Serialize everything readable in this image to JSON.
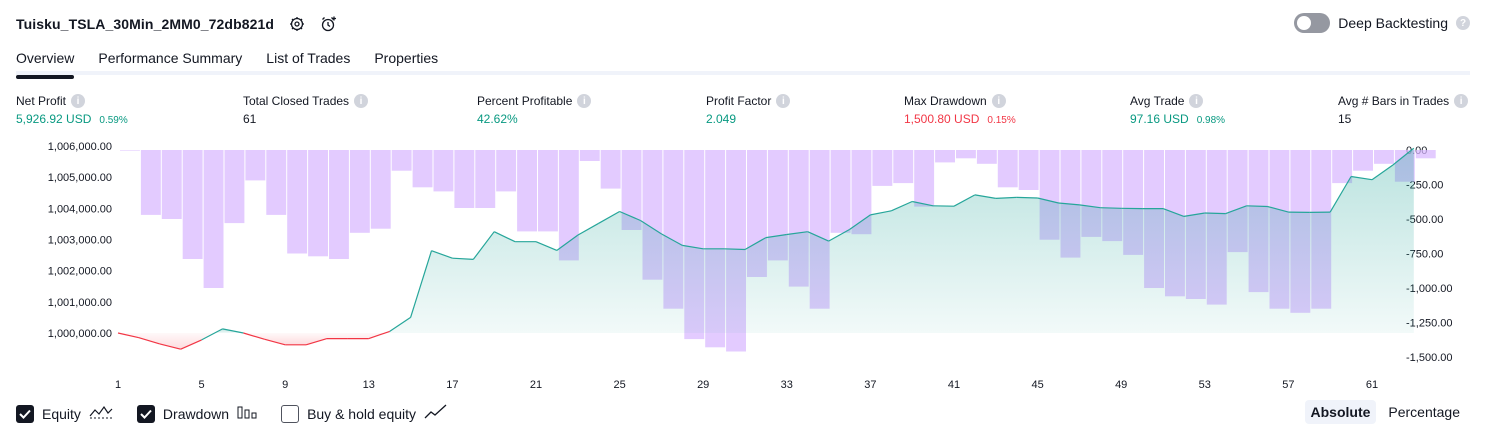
{
  "header": {
    "strategy_title": "Tuisku_TSLA_30Min_2MM0_72db821d"
  },
  "deep_backtesting": {
    "label": "Deep Backtesting",
    "enabled": false
  },
  "tabs": [
    {
      "label": "Overview",
      "active": true
    },
    {
      "label": "Performance Summary",
      "active": false
    },
    {
      "label": "List of Trades",
      "active": false
    },
    {
      "label": "Properties",
      "active": false
    }
  ],
  "metrics": {
    "net_profit": {
      "label": "Net Profit",
      "value": "5,926.92 USD",
      "pct": "0.59%"
    },
    "total_closed_trades": {
      "label": "Total Closed Trades",
      "value": "61"
    },
    "percent_profitable": {
      "label": "Percent Profitable",
      "value": "42.62%"
    },
    "profit_factor": {
      "label": "Profit Factor",
      "value": "2.049"
    },
    "max_drawdown": {
      "label": "Max Drawdown",
      "value": "1,500.80 USD",
      "pct": "0.15%"
    },
    "avg_trade": {
      "label": "Avg Trade",
      "value": "97.16 USD",
      "pct": "0.98%"
    },
    "avg_bars": {
      "label": "Avg # Bars in Trades",
      "value": "15"
    }
  },
  "legend": {
    "equity": {
      "label": "Equity",
      "checked": true
    },
    "drawdown": {
      "label": "Drawdown",
      "checked": true
    },
    "buy_hold": {
      "label": "Buy & hold equity",
      "checked": false
    }
  },
  "modes": {
    "absolute": "Absolute",
    "percentage": "Percentage",
    "active": "absolute"
  },
  "colors": {
    "equity_up": "#26a69a",
    "equity_down": "#f23645",
    "drawdown_bar": "#d8b7ff",
    "positive_text": "#089981",
    "negative_text": "#f23645"
  },
  "chart_data": {
    "type": "area",
    "x_ticks": [
      "1",
      "5",
      "9",
      "13",
      "17",
      "21",
      "25",
      "29",
      "33",
      "37",
      "41",
      "45",
      "49",
      "53",
      "57",
      "61"
    ],
    "left_ticks": [
      "1,006,000.00",
      "1,005,000.00",
      "1,004,000.00",
      "1,003,000.00",
      "1,002,000.00",
      "1,001,000.00",
      "1,000,000.00"
    ],
    "right_ticks": [
      "0.00",
      "-250.00",
      "-500.00",
      "-750.00",
      "-1,000.00",
      "-1,250.00",
      "-1,500.00"
    ],
    "equity_ylim": [
      999500,
      1006000
    ],
    "drawdown_ylim": [
      -1500,
      0
    ],
    "baseline": 1000000,
    "series": [
      {
        "name": "Equity",
        "values": [
          1000000,
          999850,
          999650,
          999480,
          999780,
          1000130,
          1000000,
          999800,
          999620,
          999620,
          999820,
          999820,
          999820,
          1000050,
          1000500,
          1002640,
          1002400,
          1002360,
          1003250,
          1002930,
          1002930,
          1002650,
          1003140,
          1003520,
          1003900,
          1003610,
          1003180,
          1002810,
          1002700,
          1002700,
          1002680,
          1003060,
          1003160,
          1003250,
          1002950,
          1003320,
          1003790,
          1003920,
          1004220,
          1004080,
          1004070,
          1004430,
          1004320,
          1004350,
          1004330,
          1004170,
          1004110,
          1004020,
          1004000,
          1003990,
          1003990,
          1003740,
          1003850,
          1003830,
          1004080,
          1004060,
          1003880,
          1003870,
          1003880,
          1005020,
          1004920,
          1005390,
          1005930
        ]
      },
      {
        "name": "Drawdown",
        "values": [
          0,
          -470,
          -500,
          -790,
          -1000,
          -530,
          -220,
          -470,
          -750,
          -770,
          -790,
          -600,
          -570,
          -150,
          -270,
          -300,
          -420,
          -420,
          -300,
          -590,
          -590,
          -800,
          -80,
          -280,
          -580,
          -940,
          -1150,
          -1370,
          -1430,
          -1460,
          -920,
          -800,
          -990,
          -1150,
          -600,
          -610,
          -260,
          -240,
          -410,
          -90,
          -60,
          -100,
          -270,
          -290,
          -650,
          -780,
          -630,
          -660,
          -760,
          -1000,
          -1060,
          -1080,
          -1120,
          -740,
          -1030,
          -1150,
          -1180,
          -1150,
          -240,
          -150,
          -100,
          -230,
          -60
        ]
      }
    ]
  }
}
